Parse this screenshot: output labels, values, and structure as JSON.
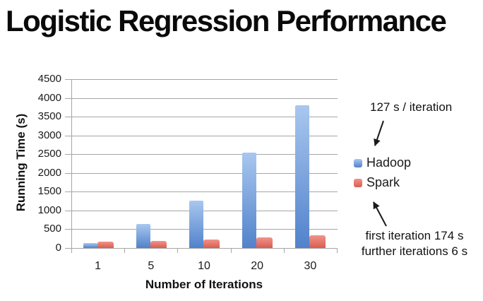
{
  "title": "Logistic Regression Performance",
  "chart_data": {
    "type": "bar",
    "title": "Logistic Regression Performance",
    "categories": [
      "1",
      "5",
      "10",
      "20",
      "30"
    ],
    "series": [
      {
        "name": "Hadoop",
        "color": "#6f9fdc",
        "gradient_top": "#a9c7ef",
        "gradient_bottom": "#5182cb",
        "values": [
          127,
          635,
          1270,
          2540,
          3810
        ]
      },
      {
        "name": "Spark",
        "color": "#e0756b",
        "gradient_top": "#f2938a",
        "gradient_bottom": "#d75e51",
        "values": [
          174,
          198,
          228,
          288,
          348
        ]
      }
    ],
    "xlabel": "Number of Iterations",
    "ylabel": "Running Time (s)",
    "ylim": [
      0,
      4500
    ],
    "ytick_step": 500,
    "grid": true,
    "legend_position": "right"
  },
  "annotations": {
    "hadoop_note": "127 s / iteration",
    "spark_note_line1": "first iteration 174 s",
    "spark_note_line2": "further iterations 6 s"
  },
  "colors": {
    "background": "#ffffff",
    "gridline": "#a6a6a6",
    "axis": "#a6a6a6",
    "text": "#1a1a1a",
    "arrow": "#1a1a1a"
  }
}
